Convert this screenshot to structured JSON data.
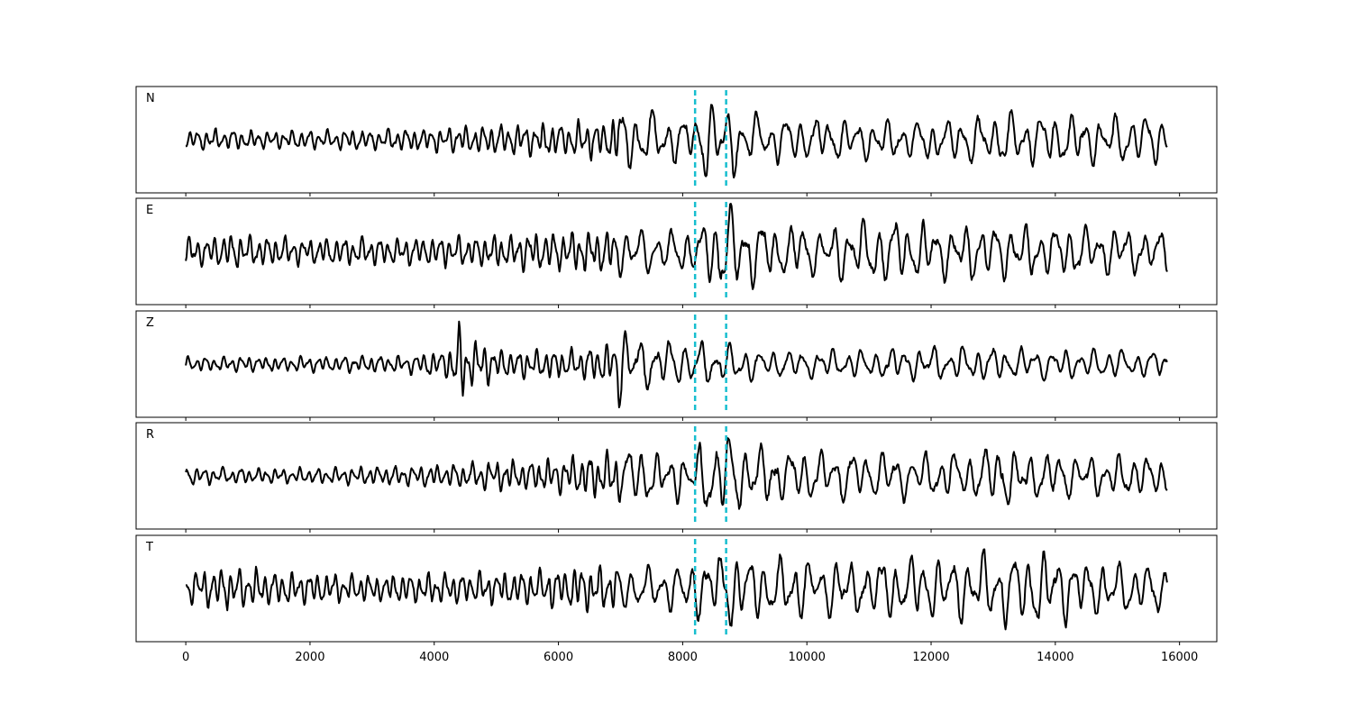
{
  "chart_data": {
    "type": "line",
    "title": "",
    "xlabel": "",
    "ylabel": "",
    "xlim": [
      -800,
      16600
    ],
    "x_ticks": [
      0,
      2000,
      4000,
      6000,
      8000,
      10000,
      12000,
      14000,
      16000
    ],
    "x_tick_labels": [
      "0",
      "2000",
      "4000",
      "6000",
      "8000",
      "10000",
      "12000",
      "14000",
      "16000"
    ],
    "sample_range": [
      0,
      15800
    ],
    "pick_markers": [
      8200,
      8700
    ],
    "colors": {
      "trace": "#000000",
      "pick": "#17becf"
    },
    "grid": false,
    "y_ticks_shown": false,
    "panels": [
      {
        "label": "N",
        "envelope": [
          [
            0,
            0.2
          ],
          [
            400,
            0.22
          ],
          [
            1500,
            0.18
          ],
          [
            4000,
            0.25
          ],
          [
            4500,
            0.3
          ],
          [
            5500,
            0.32
          ],
          [
            6800,
            0.4
          ],
          [
            7000,
            0.68
          ],
          [
            7300,
            0.6
          ],
          [
            7800,
            0.5
          ],
          [
            8200,
            0.45
          ],
          [
            8350,
            0.75
          ],
          [
            8500,
            0.95
          ],
          [
            8700,
            0.85
          ],
          [
            9000,
            0.55
          ],
          [
            9500,
            0.5
          ],
          [
            10500,
            0.42
          ],
          [
            12000,
            0.4
          ],
          [
            13000,
            0.55
          ],
          [
            14000,
            0.5
          ],
          [
            15000,
            0.52
          ],
          [
            15800,
            0.45
          ]
        ]
      },
      {
        "label": "E",
        "envelope": [
          [
            0,
            0.3
          ],
          [
            800,
            0.35
          ],
          [
            2000,
            0.28
          ],
          [
            3500,
            0.28
          ],
          [
            5000,
            0.35
          ],
          [
            6000,
            0.4
          ],
          [
            7000,
            0.5
          ],
          [
            7700,
            0.4
          ],
          [
            8200,
            0.5
          ],
          [
            8500,
            0.7
          ],
          [
            8700,
            0.95
          ],
          [
            9000,
            0.8
          ],
          [
            9500,
            0.6
          ],
          [
            10200,
            0.5
          ],
          [
            11000,
            0.7
          ],
          [
            12000,
            0.6
          ],
          [
            13500,
            0.55
          ],
          [
            14500,
            0.5
          ],
          [
            15800,
            0.45
          ]
        ]
      },
      {
        "label": "Z",
        "envelope": [
          [
            0,
            0.15
          ],
          [
            1500,
            0.15
          ],
          [
            3500,
            0.18
          ],
          [
            4200,
            0.3
          ],
          [
            4400,
            0.85
          ],
          [
            4600,
            0.5
          ],
          [
            5200,
            0.3
          ],
          [
            6200,
            0.3
          ],
          [
            6800,
            0.45
          ],
          [
            7000,
            0.9
          ],
          [
            7200,
            0.55
          ],
          [
            8200,
            0.45
          ],
          [
            8700,
            0.4
          ],
          [
            9500,
            0.3
          ],
          [
            11000,
            0.3
          ],
          [
            12000,
            0.35
          ],
          [
            13000,
            0.35
          ],
          [
            14500,
            0.3
          ],
          [
            15800,
            0.28
          ]
        ]
      },
      {
        "label": "R",
        "envelope": [
          [
            0,
            0.18
          ],
          [
            1500,
            0.15
          ],
          [
            3500,
            0.2
          ],
          [
            5000,
            0.3
          ],
          [
            6000,
            0.35
          ],
          [
            6900,
            0.5
          ],
          [
            7100,
            0.65
          ],
          [
            7500,
            0.5
          ],
          [
            8200,
            0.55
          ],
          [
            8450,
            0.95
          ],
          [
            8700,
            0.9
          ],
          [
            9000,
            0.7
          ],
          [
            9500,
            0.55
          ],
          [
            11000,
            0.5
          ],
          [
            12500,
            0.45
          ],
          [
            13100,
            0.7
          ],
          [
            13500,
            0.5
          ],
          [
            14500,
            0.45
          ],
          [
            15800,
            0.38
          ]
        ]
      },
      {
        "label": "T",
        "envelope": [
          [
            0,
            0.35
          ],
          [
            600,
            0.45
          ],
          [
            1500,
            0.35
          ],
          [
            3000,
            0.28
          ],
          [
            5000,
            0.35
          ],
          [
            6200,
            0.45
          ],
          [
            7000,
            0.5
          ],
          [
            7700,
            0.45
          ],
          [
            8200,
            0.6
          ],
          [
            8500,
            0.75
          ],
          [
            8700,
            0.85
          ],
          [
            9000,
            0.65
          ],
          [
            9600,
            0.6
          ],
          [
            11000,
            0.6
          ],
          [
            12500,
            0.7
          ],
          [
            13700,
            0.8
          ],
          [
            14500,
            0.6
          ],
          [
            15800,
            0.45
          ]
        ]
      }
    ]
  }
}
